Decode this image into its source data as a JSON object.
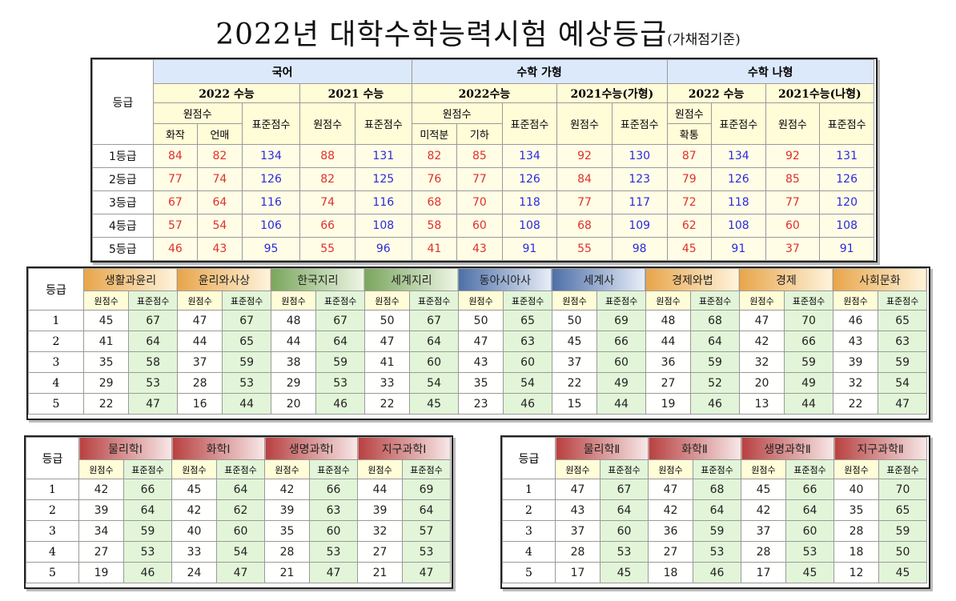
{
  "title": "2022년 대학수학능력시험 예상등급",
  "title_note": "(가채점기준)",
  "top": {
    "grade_header": "등급",
    "groups": [
      "국어",
      "수학 가형",
      "수학 나형"
    ],
    "sub": [
      "2022 수능",
      "2021 수능",
      "2022수능",
      "2021수능(가형)",
      "2022 수능",
      "2021수능(나형)"
    ],
    "raw": "원점수",
    "std": "표준점수",
    "kor_opts": [
      "화작",
      "언매"
    ],
    "math_opts": [
      "미적분",
      "기하"
    ],
    "math_b_opt": "확통",
    "rows": [
      {
        "g": "1등급",
        "v": [
          "84",
          "82",
          "134",
          "88",
          "131",
          "82",
          "85",
          "134",
          "92",
          "130",
          "87",
          "134",
          "92",
          "131"
        ]
      },
      {
        "g": "2등급",
        "v": [
          "77",
          "74",
          "126",
          "82",
          "125",
          "76",
          "77",
          "126",
          "84",
          "123",
          "79",
          "126",
          "85",
          "126"
        ]
      },
      {
        "g": "3등급",
        "v": [
          "67",
          "64",
          "116",
          "74",
          "116",
          "68",
          "70",
          "118",
          "77",
          "117",
          "72",
          "118",
          "77",
          "120"
        ]
      },
      {
        "g": "4등급",
        "v": [
          "57",
          "54",
          "106",
          "66",
          "108",
          "58",
          "60",
          "108",
          "68",
          "109",
          "62",
          "108",
          "60",
          "108"
        ]
      },
      {
        "g": "5등급",
        "v": [
          "46",
          "43",
          "95",
          "55",
          "96",
          "41",
          "43",
          "91",
          "55",
          "98",
          "45",
          "91",
          "37",
          "91"
        ]
      }
    ]
  },
  "social": {
    "grade_header": "등급",
    "subjects": [
      "생활과윤리",
      "윤리와사상",
      "한국지리",
      "세계지리",
      "동아시아사",
      "세계사",
      "경제와법",
      "경제",
      "사회문화"
    ],
    "raw": "원점수",
    "std": "표준점수",
    "rows": [
      {
        "g": "1",
        "v": [
          "45",
          "67",
          "47",
          "67",
          "48",
          "67",
          "50",
          "67",
          "50",
          "65",
          "50",
          "69",
          "48",
          "68",
          "47",
          "70",
          "46",
          "65"
        ]
      },
      {
        "g": "2",
        "v": [
          "41",
          "64",
          "44",
          "65",
          "44",
          "64",
          "47",
          "64",
          "47",
          "63",
          "45",
          "66",
          "44",
          "64",
          "42",
          "66",
          "43",
          "63"
        ]
      },
      {
        "g": "3",
        "v": [
          "35",
          "58",
          "37",
          "59",
          "38",
          "59",
          "41",
          "60",
          "43",
          "60",
          "37",
          "60",
          "36",
          "59",
          "32",
          "59",
          "39",
          "59"
        ]
      },
      {
        "g": "4",
        "v": [
          "29",
          "53",
          "28",
          "53",
          "29",
          "53",
          "33",
          "54",
          "35",
          "54",
          "22",
          "49",
          "27",
          "52",
          "20",
          "49",
          "32",
          "54"
        ]
      },
      {
        "g": "5",
        "v": [
          "22",
          "47",
          "16",
          "44",
          "20",
          "46",
          "22",
          "45",
          "23",
          "46",
          "15",
          "44",
          "19",
          "46",
          "13",
          "44",
          "22",
          "47"
        ]
      }
    ]
  },
  "sci1": {
    "grade_header": "등급",
    "subjects": [
      "물리학Ⅰ",
      "화학Ⅰ",
      "생명과학Ⅰ",
      "지구과학Ⅰ"
    ],
    "raw": "원점수",
    "std": "표준점수",
    "rows": [
      {
        "g": "1",
        "v": [
          "42",
          "66",
          "45",
          "64",
          "42",
          "66",
          "44",
          "69"
        ]
      },
      {
        "g": "2",
        "v": [
          "39",
          "64",
          "42",
          "62",
          "39",
          "63",
          "39",
          "64"
        ]
      },
      {
        "g": "3",
        "v": [
          "34",
          "59",
          "40",
          "60",
          "35",
          "60",
          "32",
          "57"
        ]
      },
      {
        "g": "4",
        "v": [
          "27",
          "53",
          "33",
          "54",
          "28",
          "53",
          "27",
          "53"
        ]
      },
      {
        "g": "5",
        "v": [
          "19",
          "46",
          "24",
          "47",
          "21",
          "47",
          "21",
          "47"
        ]
      }
    ]
  },
  "sci2": {
    "grade_header": "등급",
    "subjects": [
      "물리학Ⅱ",
      "화학Ⅱ",
      "생명과학Ⅱ",
      "지구과학Ⅱ"
    ],
    "raw": "원점수",
    "std": "표준점수",
    "rows": [
      {
        "g": "1",
        "v": [
          "47",
          "67",
          "47",
          "68",
          "45",
          "66",
          "40",
          "70"
        ]
      },
      {
        "g": "2",
        "v": [
          "43",
          "64",
          "42",
          "64",
          "42",
          "64",
          "35",
          "65"
        ]
      },
      {
        "g": "3",
        "v": [
          "37",
          "60",
          "36",
          "59",
          "37",
          "60",
          "28",
          "59"
        ]
      },
      {
        "g": "4",
        "v": [
          "28",
          "53",
          "27",
          "53",
          "28",
          "53",
          "18",
          "50"
        ]
      },
      {
        "g": "5",
        "v": [
          "17",
          "45",
          "18",
          "46",
          "17",
          "45",
          "12",
          "45"
        ]
      }
    ]
  }
}
